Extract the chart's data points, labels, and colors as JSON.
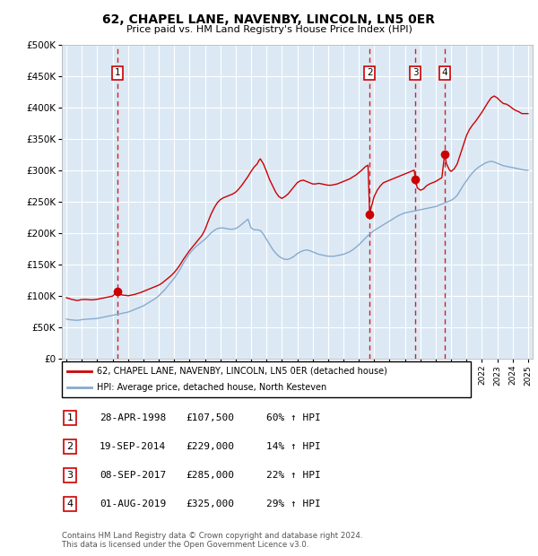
{
  "title": "62, CHAPEL LANE, NAVENBY, LINCOLN, LN5 0ER",
  "subtitle": "Price paid vs. HM Land Registry's House Price Index (HPI)",
  "plot_bg_color": "#dce9f5",
  "ylim": [
    0,
    500000
  ],
  "yticks": [
    0,
    50000,
    100000,
    150000,
    200000,
    250000,
    300000,
    350000,
    400000,
    450000,
    500000
  ],
  "ytick_labels": [
    "£0",
    "£50K",
    "£100K",
    "£150K",
    "£200K",
    "£250K",
    "£300K",
    "£350K",
    "£400K",
    "£450K",
    "£500K"
  ],
  "xticks": [
    1995,
    1996,
    1997,
    1998,
    1999,
    2000,
    2001,
    2002,
    2003,
    2004,
    2005,
    2006,
    2007,
    2008,
    2009,
    2010,
    2011,
    2012,
    2013,
    2014,
    2015,
    2016,
    2017,
    2018,
    2019,
    2020,
    2021,
    2022,
    2023,
    2024,
    2025
  ],
  "red_line_color": "#cc0000",
  "blue_line_color": "#88aacc",
  "sale_marker_color": "#cc0000",
  "vline_color": "#cc0000",
  "grid_color": "#ffffff",
  "legend_label_red": "62, CHAPEL LANE, NAVENBY, LINCOLN, LN5 0ER (detached house)",
  "legend_label_blue": "HPI: Average price, detached house, North Kesteven",
  "sales": [
    {
      "id": 1,
      "date_str": "28-APR-1998",
      "year": 1998.3,
      "price": 107500,
      "pct": "60%",
      "dir": "↑"
    },
    {
      "id": 2,
      "date_str": "19-SEP-2014",
      "year": 2014.71,
      "price": 229000,
      "pct": "14%",
      "dir": "↑"
    },
    {
      "id": 3,
      "date_str": "08-SEP-2017",
      "year": 2017.68,
      "price": 285000,
      "pct": "22%",
      "dir": "↑"
    },
    {
      "id": 4,
      "date_str": "01-AUG-2019",
      "year": 2019.58,
      "price": 325000,
      "pct": "29%",
      "dir": "↑"
    }
  ],
  "footer": "Contains HM Land Registry data © Crown copyright and database right 2024.\nThis data is licensed under the Open Government Licence v3.0.",
  "red_hpi_data": [
    [
      1995.0,
      97000
    ],
    [
      1995.1,
      96000
    ],
    [
      1995.2,
      95500
    ],
    [
      1995.3,
      94500
    ],
    [
      1995.4,
      94000
    ],
    [
      1995.5,
      93500
    ],
    [
      1995.6,
      93000
    ],
    [
      1995.7,
      92500
    ],
    [
      1995.8,
      93000
    ],
    [
      1995.9,
      93500
    ],
    [
      1996.0,
      94000
    ],
    [
      1996.2,
      94200
    ],
    [
      1996.4,
      94000
    ],
    [
      1996.6,
      93500
    ],
    [
      1996.8,
      93800
    ],
    [
      1997.0,
      94500
    ],
    [
      1997.2,
      95500
    ],
    [
      1997.4,
      96500
    ],
    [
      1997.6,
      97500
    ],
    [
      1997.8,
      98500
    ],
    [
      1998.0,
      99500
    ],
    [
      1998.3,
      107500
    ],
    [
      1998.5,
      102000
    ],
    [
      1998.7,
      101000
    ],
    [
      1998.9,
      100500
    ],
    [
      1999.0,
      100000
    ],
    [
      1999.2,
      101000
    ],
    [
      1999.4,
      102000
    ],
    [
      1999.6,
      103500
    ],
    [
      1999.8,
      105000
    ],
    [
      2000.0,
      107000
    ],
    [
      2000.2,
      109000
    ],
    [
      2000.4,
      111000
    ],
    [
      2000.6,
      113000
    ],
    [
      2000.8,
      115000
    ],
    [
      2001.0,
      117000
    ],
    [
      2001.2,
      120000
    ],
    [
      2001.4,
      124000
    ],
    [
      2001.6,
      128000
    ],
    [
      2001.8,
      132000
    ],
    [
      2002.0,
      137000
    ],
    [
      2002.2,
      143000
    ],
    [
      2002.4,
      150000
    ],
    [
      2002.6,
      158000
    ],
    [
      2002.8,
      165000
    ],
    [
      2003.0,
      172000
    ],
    [
      2003.2,
      178000
    ],
    [
      2003.4,
      184000
    ],
    [
      2003.6,
      190000
    ],
    [
      2003.8,
      196000
    ],
    [
      2004.0,
      205000
    ],
    [
      2004.2,
      218000
    ],
    [
      2004.4,
      230000
    ],
    [
      2004.6,
      240000
    ],
    [
      2004.8,
      248000
    ],
    [
      2005.0,
      253000
    ],
    [
      2005.2,
      256000
    ],
    [
      2005.4,
      258000
    ],
    [
      2005.6,
      260000
    ],
    [
      2005.8,
      262000
    ],
    [
      2006.0,
      265000
    ],
    [
      2006.2,
      270000
    ],
    [
      2006.4,
      276000
    ],
    [
      2006.6,
      283000
    ],
    [
      2006.8,
      290000
    ],
    [
      2007.0,
      298000
    ],
    [
      2007.2,
      305000
    ],
    [
      2007.4,
      310000
    ],
    [
      2007.5,
      315000
    ],
    [
      2007.6,
      318000
    ],
    [
      2007.8,
      310000
    ],
    [
      2008.0,
      298000
    ],
    [
      2008.2,
      285000
    ],
    [
      2008.4,
      275000
    ],
    [
      2008.6,
      265000
    ],
    [
      2008.8,
      258000
    ],
    [
      2009.0,
      255000
    ],
    [
      2009.2,
      258000
    ],
    [
      2009.4,
      262000
    ],
    [
      2009.6,
      268000
    ],
    [
      2009.8,
      274000
    ],
    [
      2010.0,
      280000
    ],
    [
      2010.2,
      283000
    ],
    [
      2010.4,
      284000
    ],
    [
      2010.6,
      282000
    ],
    [
      2010.8,
      280000
    ],
    [
      2011.0,
      278000
    ],
    [
      2011.2,
      278000
    ],
    [
      2011.4,
      279000
    ],
    [
      2011.6,
      278000
    ],
    [
      2011.8,
      277000
    ],
    [
      2012.0,
      276000
    ],
    [
      2012.2,
      276000
    ],
    [
      2012.4,
      277000
    ],
    [
      2012.6,
      278000
    ],
    [
      2012.8,
      280000
    ],
    [
      2013.0,
      282000
    ],
    [
      2013.2,
      284000
    ],
    [
      2013.4,
      286000
    ],
    [
      2013.6,
      289000
    ],
    [
      2013.8,
      292000
    ],
    [
      2014.0,
      296000
    ],
    [
      2014.2,
      300000
    ],
    [
      2014.4,
      305000
    ],
    [
      2014.6,
      308000
    ],
    [
      2014.71,
      229000
    ],
    [
      2014.8,
      240000
    ],
    [
      2015.0,
      258000
    ],
    [
      2015.2,
      268000
    ],
    [
      2015.4,
      275000
    ],
    [
      2015.6,
      280000
    ],
    [
      2015.8,
      282000
    ],
    [
      2016.0,
      284000
    ],
    [
      2016.2,
      286000
    ],
    [
      2016.4,
      288000
    ],
    [
      2016.6,
      290000
    ],
    [
      2016.8,
      292000
    ],
    [
      2017.0,
      294000
    ],
    [
      2017.2,
      296000
    ],
    [
      2017.4,
      298000
    ],
    [
      2017.6,
      300000
    ],
    [
      2017.68,
      285000
    ],
    [
      2017.8,
      272000
    ],
    [
      2018.0,
      268000
    ],
    [
      2018.2,
      270000
    ],
    [
      2018.4,
      275000
    ],
    [
      2018.6,
      278000
    ],
    [
      2018.8,
      280000
    ],
    [
      2019.0,
      282000
    ],
    [
      2019.2,
      285000
    ],
    [
      2019.4,
      288000
    ],
    [
      2019.58,
      325000
    ],
    [
      2019.7,
      310000
    ],
    [
      2019.9,
      300000
    ],
    [
      2020.0,
      298000
    ],
    [
      2020.2,
      302000
    ],
    [
      2020.4,
      310000
    ],
    [
      2020.6,
      325000
    ],
    [
      2020.8,
      340000
    ],
    [
      2021.0,
      355000
    ],
    [
      2021.2,
      365000
    ],
    [
      2021.4,
      372000
    ],
    [
      2021.6,
      378000
    ],
    [
      2021.8,
      385000
    ],
    [
      2022.0,
      392000
    ],
    [
      2022.2,
      400000
    ],
    [
      2022.4,
      408000
    ],
    [
      2022.6,
      415000
    ],
    [
      2022.8,
      418000
    ],
    [
      2023.0,
      415000
    ],
    [
      2023.2,
      410000
    ],
    [
      2023.4,
      406000
    ],
    [
      2023.6,
      405000
    ],
    [
      2023.8,
      402000
    ],
    [
      2024.0,
      398000
    ],
    [
      2024.2,
      395000
    ],
    [
      2024.4,
      393000
    ],
    [
      2024.6,
      390000
    ],
    [
      2024.8,
      390000
    ],
    [
      2025.0,
      390000
    ]
  ],
  "blue_hpi_data": [
    [
      1995.0,
      63000
    ],
    [
      1995.2,
      62000
    ],
    [
      1995.4,
      61500
    ],
    [
      1995.6,
      61000
    ],
    [
      1995.8,
      61200
    ],
    [
      1996.0,
      62000
    ],
    [
      1996.2,
      62500
    ],
    [
      1996.4,
      63000
    ],
    [
      1996.6,
      63200
    ],
    [
      1996.8,
      63500
    ],
    [
      1997.0,
      64000
    ],
    [
      1997.2,
      65000
    ],
    [
      1997.4,
      66000
    ],
    [
      1997.6,
      67000
    ],
    [
      1997.8,
      68000
    ],
    [
      1998.0,
      69000
    ],
    [
      1998.2,
      70000
    ],
    [
      1998.4,
      71000
    ],
    [
      1998.6,
      72000
    ],
    [
      1998.8,
      73000
    ],
    [
      1999.0,
      74000
    ],
    [
      1999.2,
      76000
    ],
    [
      1999.4,
      78000
    ],
    [
      1999.6,
      80000
    ],
    [
      1999.8,
      82000
    ],
    [
      2000.0,
      84000
    ],
    [
      2000.2,
      87000
    ],
    [
      2000.4,
      90000
    ],
    [
      2000.6,
      93000
    ],
    [
      2000.8,
      96000
    ],
    [
      2001.0,
      100000
    ],
    [
      2001.2,
      105000
    ],
    [
      2001.4,
      110000
    ],
    [
      2001.6,
      116000
    ],
    [
      2001.8,
      122000
    ],
    [
      2002.0,
      128000
    ],
    [
      2002.2,
      135000
    ],
    [
      2002.4,
      143000
    ],
    [
      2002.6,
      152000
    ],
    [
      2002.8,
      160000
    ],
    [
      2003.0,
      167000
    ],
    [
      2003.2,
      173000
    ],
    [
      2003.4,
      178000
    ],
    [
      2003.6,
      182000
    ],
    [
      2003.8,
      186000
    ],
    [
      2004.0,
      190000
    ],
    [
      2004.2,
      195000
    ],
    [
      2004.4,
      200000
    ],
    [
      2004.6,
      204000
    ],
    [
      2004.8,
      207000
    ],
    [
      2005.0,
      208000
    ],
    [
      2005.2,
      208000
    ],
    [
      2005.4,
      207000
    ],
    [
      2005.6,
      206000
    ],
    [
      2005.8,
      206000
    ],
    [
      2006.0,
      207000
    ],
    [
      2006.2,
      210000
    ],
    [
      2006.4,
      214000
    ],
    [
      2006.6,
      218000
    ],
    [
      2006.8,
      222000
    ],
    [
      2007.0,
      208000
    ],
    [
      2007.2,
      205000
    ],
    [
      2007.4,
      205000
    ],
    [
      2007.6,
      204000
    ],
    [
      2007.8,
      198000
    ],
    [
      2008.0,
      190000
    ],
    [
      2008.2,
      182000
    ],
    [
      2008.4,
      174000
    ],
    [
      2008.6,
      168000
    ],
    [
      2008.8,
      163000
    ],
    [
      2009.0,
      160000
    ],
    [
      2009.2,
      158000
    ],
    [
      2009.4,
      158000
    ],
    [
      2009.6,
      160000
    ],
    [
      2009.8,
      163000
    ],
    [
      2010.0,
      167000
    ],
    [
      2010.2,
      170000
    ],
    [
      2010.4,
      172000
    ],
    [
      2010.6,
      173000
    ],
    [
      2010.8,
      172000
    ],
    [
      2011.0,
      170000
    ],
    [
      2011.2,
      168000
    ],
    [
      2011.4,
      166000
    ],
    [
      2011.6,
      165000
    ],
    [
      2011.8,
      164000
    ],
    [
      2012.0,
      163000
    ],
    [
      2012.2,
      163000
    ],
    [
      2012.4,
      163000
    ],
    [
      2012.6,
      164000
    ],
    [
      2012.8,
      165000
    ],
    [
      2013.0,
      166000
    ],
    [
      2013.2,
      168000
    ],
    [
      2013.4,
      170000
    ],
    [
      2013.6,
      173000
    ],
    [
      2013.8,
      177000
    ],
    [
      2014.0,
      181000
    ],
    [
      2014.2,
      186000
    ],
    [
      2014.4,
      191000
    ],
    [
      2014.6,
      196000
    ],
    [
      2014.8,
      200000
    ],
    [
      2015.0,
      204000
    ],
    [
      2015.2,
      207000
    ],
    [
      2015.4,
      210000
    ],
    [
      2015.6,
      213000
    ],
    [
      2015.8,
      216000
    ],
    [
      2016.0,
      219000
    ],
    [
      2016.2,
      222000
    ],
    [
      2016.4,
      225000
    ],
    [
      2016.6,
      228000
    ],
    [
      2016.8,
      230000
    ],
    [
      2017.0,
      232000
    ],
    [
      2017.2,
      233000
    ],
    [
      2017.4,
      234000
    ],
    [
      2017.6,
      235000
    ],
    [
      2017.8,
      236000
    ],
    [
      2018.0,
      237000
    ],
    [
      2018.2,
      238000
    ],
    [
      2018.4,
      239000
    ],
    [
      2018.6,
      240000
    ],
    [
      2018.8,
      241000
    ],
    [
      2019.0,
      242000
    ],
    [
      2019.2,
      244000
    ],
    [
      2019.4,
      246000
    ],
    [
      2019.6,
      248000
    ],
    [
      2019.8,
      250000
    ],
    [
      2020.0,
      252000
    ],
    [
      2020.2,
      255000
    ],
    [
      2020.4,
      260000
    ],
    [
      2020.6,
      268000
    ],
    [
      2020.8,
      276000
    ],
    [
      2021.0,
      283000
    ],
    [
      2021.2,
      290000
    ],
    [
      2021.4,
      296000
    ],
    [
      2021.6,
      301000
    ],
    [
      2021.8,
      305000
    ],
    [
      2022.0,
      308000
    ],
    [
      2022.2,
      311000
    ],
    [
      2022.4,
      313000
    ],
    [
      2022.6,
      314000
    ],
    [
      2022.8,
      313000
    ],
    [
      2023.0,
      311000
    ],
    [
      2023.2,
      309000
    ],
    [
      2023.4,
      307000
    ],
    [
      2023.6,
      306000
    ],
    [
      2023.8,
      305000
    ],
    [
      2024.0,
      304000
    ],
    [
      2024.2,
      303000
    ],
    [
      2024.4,
      302000
    ],
    [
      2024.6,
      301000
    ],
    [
      2024.8,
      300000
    ],
    [
      2025.0,
      300000
    ]
  ]
}
